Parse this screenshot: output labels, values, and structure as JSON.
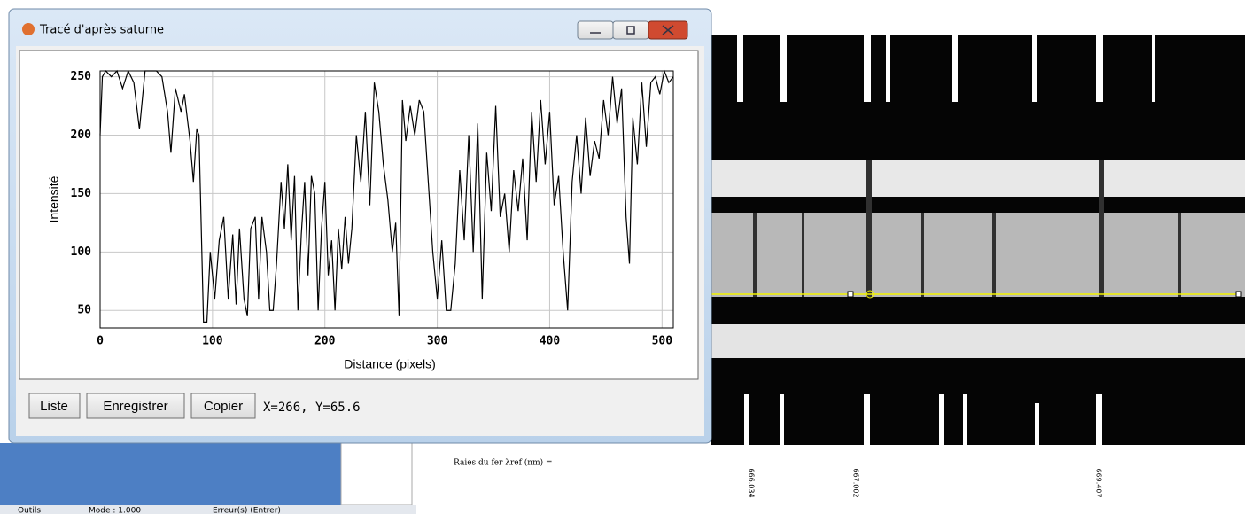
{
  "window": {
    "title": "Tracé d'après saturne",
    "buttons": [
      "Liste",
      "Enregistrer",
      "Copier"
    ],
    "status": "X=266, Y=65.6"
  },
  "chart_data": {
    "type": "line",
    "xlabel": "Distance (pixels)",
    "ylabel": "Intensité",
    "x": [
      0,
      2,
      5,
      10,
      15,
      20,
      25,
      30,
      35,
      40,
      45,
      50,
      55,
      60,
      63,
      67,
      72,
      75,
      80,
      83,
      86,
      88,
      92,
      95,
      98,
      102,
      106,
      110,
      114,
      118,
      121,
      124,
      128,
      131,
      134,
      138,
      141,
      144,
      148,
      151,
      154,
      157,
      161,
      164,
      167,
      170,
      173,
      176,
      179,
      182,
      185,
      188,
      191,
      194,
      197,
      200,
      203,
      206,
      209,
      212,
      215,
      218,
      221,
      224,
      228,
      232,
      236,
      240,
      244,
      248,
      252,
      256,
      260,
      263,
      266,
      269,
      272,
      276,
      280,
      284,
      288,
      292,
      296,
      300,
      304,
      308,
      312,
      316,
      320,
      324,
      328,
      332,
      336,
      340,
      344,
      348,
      352,
      356,
      360,
      364,
      368,
      372,
      376,
      380,
      384,
      388,
      392,
      396,
      400,
      404,
      408,
      412,
      416,
      420,
      424,
      428,
      432,
      436,
      440,
      444,
      448,
      452,
      456,
      460,
      464,
      468,
      471,
      474,
      478,
      482,
      486,
      490,
      494,
      498,
      502,
      506,
      510
    ],
    "values": [
      200,
      250,
      255,
      250,
      255,
      240,
      255,
      245,
      205,
      255,
      255,
      255,
      250,
      220,
      185,
      240,
      220,
      235,
      195,
      160,
      205,
      200,
      40,
      40,
      100,
      60,
      110,
      130,
      60,
      115,
      55,
      120,
      60,
      45,
      120,
      130,
      60,
      130,
      100,
      50,
      50,
      90,
      160,
      120,
      175,
      110,
      165,
      50,
      115,
      160,
      80,
      165,
      150,
      50,
      120,
      160,
      80,
      110,
      50,
      120,
      85,
      130,
      90,
      120,
      200,
      160,
      220,
      140,
      245,
      220,
      175,
      145,
      100,
      125,
      45,
      230,
      195,
      225,
      200,
      230,
      220,
      160,
      100,
      60,
      110,
      50,
      50,
      90,
      170,
      110,
      200,
      100,
      210,
      60,
      185,
      135,
      225,
      130,
      150,
      100,
      170,
      135,
      180,
      110,
      220,
      160,
      230,
      175,
      220,
      140,
      165,
      100,
      50,
      160,
      200,
      150,
      215,
      165,
      195,
      180,
      230,
      200,
      250,
      210,
      240,
      130,
      90,
      215,
      175,
      245,
      190,
      245,
      250,
      235,
      255,
      245,
      250
    ],
    "color": "#000000",
    "xlim": [
      0,
      510
    ],
    "ylim": [
      35,
      255
    ],
    "xticks": [
      0,
      100,
      200,
      300,
      400,
      500
    ],
    "yticks": [
      50,
      100,
      150,
      200,
      250
    ],
    "grid": true
  },
  "spectrum": {
    "label": "Raies du fer λref (nm) =",
    "lines": [
      "666.034",
      "667.002",
      "669.407"
    ]
  },
  "statusbar": [
    "Outils",
    "Mode : 1.000",
    "Erreur(s) (Entrer)"
  ]
}
